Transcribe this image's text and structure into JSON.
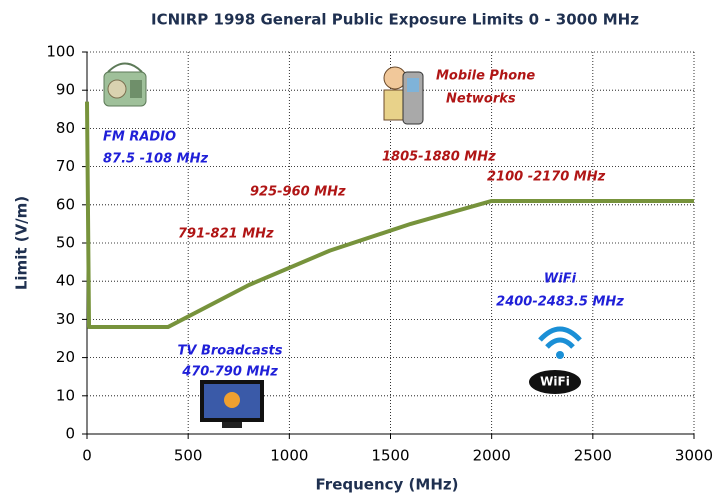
{
  "chart_data": {
    "type": "line",
    "title": "ICNIRP 1998 General Public Exposure Limits 0 - 3000 MHz",
    "x_label": "Frequency (MHz)",
    "y_label": "Limit (V/m)",
    "x": [
      0,
      10,
      400,
      800,
      1200,
      1600,
      2000,
      3000
    ],
    "series": [
      {
        "name": "Limit",
        "color": "#77933c",
        "values": [
          87,
          28,
          28,
          39,
          48,
          55,
          61,
          61
        ]
      }
    ],
    "xlim": [
      0,
      3000
    ],
    "xticks": [
      0,
      500,
      1000,
      1500,
      2000,
      2500,
      3000
    ],
    "ylim": [
      0,
      100
    ],
    "yticks": [
      0,
      10,
      20,
      30,
      40,
      50,
      60,
      70,
      80,
      90,
      100
    ],
    "grid": true,
    "annotations": [
      "FM RADIO",
      "87.5 -108 MHz",
      "Mobile Phone",
      "Networks",
      "1805-1880 MHz",
      "925-960 MHz",
      "2100 -2170 MHz",
      "791-821 MHz",
      "WiFi",
      "2400-2483.5 MHz",
      "TV Broadcasts",
      "470-790 MHz"
    ],
    "wifi_logo_text": "WiFi"
  }
}
